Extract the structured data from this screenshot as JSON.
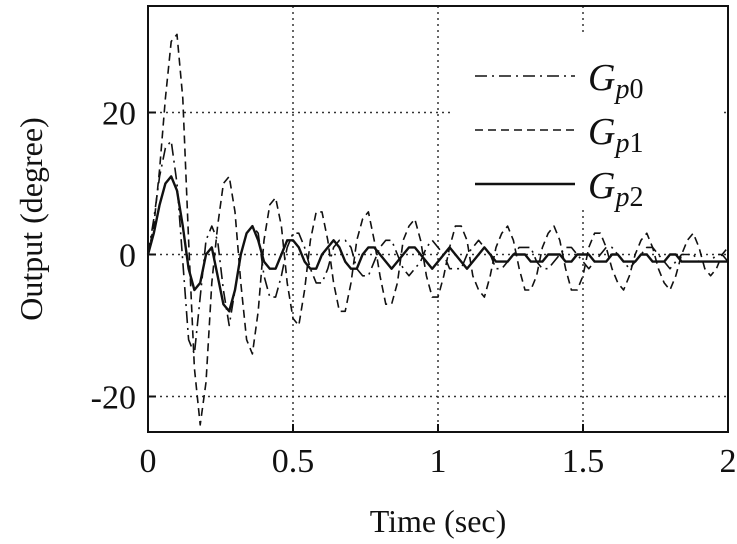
{
  "chart_data": {
    "type": "line",
    "xlabel": "Time (sec)",
    "ylabel": "Output (degree)",
    "xlim": [
      0,
      2
    ],
    "ylim": [
      -25,
      35
    ],
    "xticks": [
      0,
      0.5,
      1,
      1.5,
      2
    ],
    "xtick_labels": [
      "0",
      "0.5",
      "1",
      "1.5",
      "2"
    ],
    "yticks": [
      -20,
      0,
      20
    ],
    "ytick_labels": [
      "-20",
      "0",
      "20"
    ],
    "grid": true,
    "legend_position": "top-right",
    "series": [
      {
        "name_main": "G",
        "name_sub": "p",
        "name_num": "0",
        "style": "dash-dot",
        "x": [
          0,
          0.02,
          0.04,
          0.06,
          0.08,
          0.1,
          0.12,
          0.14,
          0.16,
          0.18,
          0.2,
          0.22,
          0.24,
          0.26,
          0.28,
          0.3,
          0.32,
          0.34,
          0.36,
          0.38,
          0.4,
          0.42,
          0.44,
          0.46,
          0.48,
          0.5,
          0.52,
          0.54,
          0.56,
          0.58,
          0.6,
          0.62,
          0.64,
          0.66,
          0.68,
          0.7,
          0.72,
          0.74,
          0.76,
          0.78,
          0.8,
          0.82,
          0.84,
          0.86,
          0.88,
          0.9,
          0.92,
          0.94,
          0.96,
          0.98,
          1.0,
          1.02,
          1.04,
          1.06,
          1.08,
          1.1,
          1.12,
          1.14,
          1.16,
          1.18,
          1.2,
          1.22,
          1.24,
          1.26,
          1.28,
          1.3,
          1.32,
          1.34,
          1.36,
          1.38,
          1.4,
          1.42,
          1.44,
          1.46,
          1.48,
          1.5,
          1.52,
          1.54,
          1.56,
          1.58,
          1.6,
          1.62,
          1.64,
          1.66,
          1.68,
          1.7,
          1.72,
          1.74,
          1.76,
          1.78,
          1.8,
          1.82,
          1.84,
          1.86,
          1.88,
          1.9,
          1.92,
          1.94,
          1.96,
          1.98,
          2.0
        ],
        "y": [
          0,
          5,
          11,
          15,
          16,
          10,
          -1,
          -12,
          -14,
          -6,
          2,
          4,
          2,
          -5,
          -10,
          -5,
          0,
          3,
          4,
          3,
          -3,
          -6,
          -6,
          -3,
          1,
          3,
          3,
          1,
          -2,
          -4,
          -4,
          -2,
          1,
          2,
          2,
          1,
          -2,
          -3,
          -3,
          -1,
          1,
          2,
          2,
          0,
          -2,
          -3,
          -2,
          -1,
          1,
          2,
          1,
          0,
          -2,
          -2,
          -2,
          0,
          1,
          2,
          1,
          0,
          -2,
          -2,
          -1,
          0,
          1,
          1,
          1,
          -1,
          -2,
          -2,
          -1,
          0,
          1,
          1,
          0,
          -1,
          -2,
          -1,
          0,
          1,
          1,
          0,
          -1,
          -2,
          -1,
          0,
          1,
          1,
          0,
          -1,
          -2,
          -1,
          0,
          0,
          0,
          -1,
          -1,
          -1,
          0,
          0,
          -1
        ]
      },
      {
        "name_main": "G",
        "name_sub": "p",
        "name_num": "1",
        "style": "dashed",
        "x": [
          0,
          0.02,
          0.04,
          0.06,
          0.08,
          0.1,
          0.12,
          0.14,
          0.16,
          0.18,
          0.2,
          0.22,
          0.24,
          0.26,
          0.28,
          0.3,
          0.32,
          0.34,
          0.36,
          0.38,
          0.4,
          0.42,
          0.44,
          0.46,
          0.48,
          0.5,
          0.52,
          0.54,
          0.56,
          0.58,
          0.6,
          0.62,
          0.64,
          0.66,
          0.68,
          0.7,
          0.72,
          0.74,
          0.76,
          0.78,
          0.8,
          0.82,
          0.84,
          0.86,
          0.88,
          0.9,
          0.92,
          0.94,
          0.96,
          0.98,
          1.0,
          1.02,
          1.04,
          1.06,
          1.08,
          1.1,
          1.12,
          1.14,
          1.16,
          1.18,
          1.2,
          1.22,
          1.24,
          1.26,
          1.28,
          1.3,
          1.32,
          1.34,
          1.36,
          1.38,
          1.4,
          1.42,
          1.44,
          1.46,
          1.48,
          1.5,
          1.52,
          1.54,
          1.56,
          1.58,
          1.6,
          1.62,
          1.64,
          1.66,
          1.68,
          1.7,
          1.72,
          1.74,
          1.76,
          1.78,
          1.8,
          1.82,
          1.84,
          1.86,
          1.88,
          1.9,
          1.92,
          1.94,
          1.96,
          1.98,
          2.0
        ],
        "y": [
          0,
          4,
          12,
          22,
          30,
          31,
          22,
          2,
          -16,
          -24,
          -18,
          -4,
          4,
          10,
          11,
          6,
          -4,
          -12,
          -14,
          -8,
          2,
          7,
          8,
          4,
          -4,
          -9,
          -10,
          -5,
          2,
          6,
          6,
          2,
          -4,
          -8,
          -8,
          -4,
          2,
          5,
          6,
          2,
          -3,
          -7,
          -7,
          -4,
          2,
          4,
          5,
          2,
          -3,
          -6,
          -6,
          -3,
          1,
          4,
          4,
          2,
          -3,
          -5,
          -6,
          -3,
          1,
          3,
          4,
          2,
          -2,
          -5,
          -5,
          -3,
          1,
          3,
          4,
          2,
          -2,
          -5,
          -5,
          -3,
          1,
          3,
          3,
          1,
          -2,
          -4,
          -5,
          -3,
          0,
          2,
          3,
          1,
          -2,
          -4,
          -5,
          -3,
          0,
          2,
          3,
          1,
          -2,
          -3,
          -2,
          0,
          1
        ]
      },
      {
        "name_main": "G",
        "name_sub": "p",
        "name_num": "2",
        "style": "solid",
        "x": [
          0,
          0.02,
          0.04,
          0.06,
          0.08,
          0.1,
          0.12,
          0.14,
          0.16,
          0.18,
          0.2,
          0.22,
          0.24,
          0.26,
          0.28,
          0.3,
          0.32,
          0.34,
          0.36,
          0.38,
          0.4,
          0.42,
          0.44,
          0.46,
          0.48,
          0.5,
          0.52,
          0.54,
          0.56,
          0.58,
          0.6,
          0.62,
          0.64,
          0.66,
          0.68,
          0.7,
          0.72,
          0.74,
          0.76,
          0.78,
          0.8,
          0.82,
          0.84,
          0.86,
          0.88,
          0.9,
          0.92,
          0.94,
          0.96,
          0.98,
          1.0,
          1.02,
          1.04,
          1.06,
          1.08,
          1.1,
          1.12,
          1.14,
          1.16,
          1.18,
          1.2,
          1.22,
          1.24,
          1.26,
          1.28,
          1.3,
          1.32,
          1.34,
          1.36,
          1.38,
          1.4,
          1.42,
          1.44,
          1.46,
          1.48,
          1.5,
          1.52,
          1.54,
          1.56,
          1.58,
          1.6,
          1.62,
          1.64,
          1.66,
          1.68,
          1.7,
          1.72,
          1.74,
          1.76,
          1.78,
          1.8,
          1.82,
          1.84,
          1.86,
          1.88,
          1.9,
          1.92,
          1.94,
          1.96,
          1.98,
          2.0
        ],
        "y": [
          0,
          3,
          7,
          10,
          11,
          9,
          4,
          -2,
          -5,
          -4,
          0,
          1,
          -3,
          -7,
          -8,
          -5,
          0,
          3,
          4,
          2,
          -1,
          -2,
          -2,
          0,
          2,
          2,
          1,
          -1,
          -2,
          -2,
          0,
          1,
          2,
          1,
          -1,
          -2,
          -2,
          0,
          1,
          1,
          0,
          -1,
          -2,
          -1,
          0,
          1,
          1,
          0,
          -1,
          -2,
          -1,
          0,
          1,
          0,
          -1,
          -2,
          -1,
          0,
          1,
          0,
          -1,
          -1,
          -1,
          0,
          0,
          0,
          -1,
          -1,
          -1,
          0,
          0,
          0,
          -1,
          -1,
          0,
          0,
          0,
          -1,
          -1,
          -1,
          0,
          0,
          -1,
          -1,
          -1,
          0,
          0,
          -1,
          -1,
          -1,
          0,
          0,
          -1,
          -1,
          -1,
          -1,
          -1,
          -1,
          -1,
          -1,
          -1
        ]
      }
    ]
  }
}
